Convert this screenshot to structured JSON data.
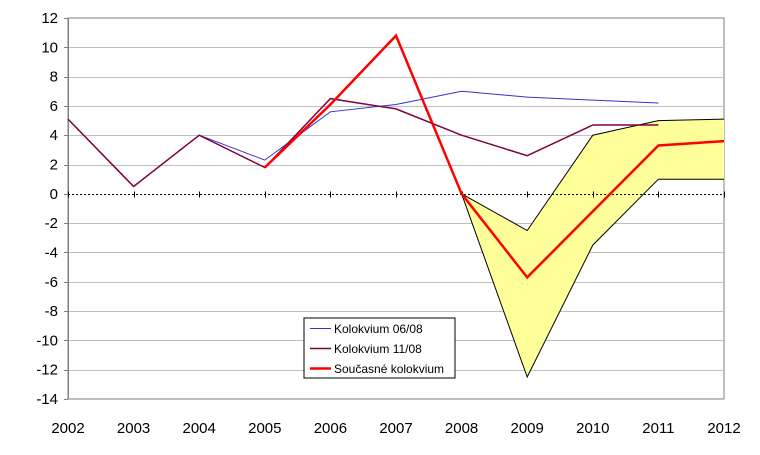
{
  "chart_data": {
    "type": "line",
    "x": [
      2002,
      2003,
      2004,
      2005,
      2006,
      2007,
      2008,
      2009,
      2010,
      2011,
      2012
    ],
    "x_tick_labels": [
      "2002",
      "2003",
      "2004",
      "2005",
      "2006",
      "2007",
      "2008",
      "2009",
      "2010",
      "2011",
      "2012"
    ],
    "ylim": [
      -14,
      12
    ],
    "y_ticks": [
      12,
      10,
      8,
      6,
      4,
      2,
      0,
      -2,
      -4,
      -6,
      -8,
      -10,
      -12,
      -14
    ],
    "y_tick_labels": [
      "12",
      "10",
      "8",
      "6",
      "4",
      "2",
      "0",
      "-2",
      "-4",
      "-6",
      "-8",
      "-10",
      "-12",
      "-14"
    ],
    "grid": "horizontal",
    "zero_line": "dotted",
    "legend_position": "lower-center",
    "series": [
      {
        "name": "Kolokvium 06/08",
        "color": "#3333cc",
        "values": [
          5.1,
          0.5,
          4.0,
          2.3,
          5.6,
          6.1,
          7.0,
          6.6,
          6.4,
          6.2,
          null
        ]
      },
      {
        "name": "Kolokvium 11/08",
        "color": "#800040",
        "values": [
          5.1,
          0.5,
          4.0,
          1.8,
          6.5,
          5.8,
          4.0,
          2.6,
          4.7,
          4.7,
          null
        ]
      },
      {
        "name": "Současné kolokvium",
        "color": "#ff0000",
        "values": [
          null,
          null,
          null,
          1.8,
          6.1,
          10.8,
          0.0,
          -5.7,
          -1.2,
          3.3,
          3.6
        ]
      }
    ],
    "band": {
      "color": "#ffff99",
      "x": [
        2008,
        2009,
        2010,
        2011,
        2012
      ],
      "upper": [
        0.0,
        -2.5,
        4.0,
        5.0,
        5.1
      ],
      "lower": [
        0.0,
        -12.5,
        -3.5,
        1.0,
        1.0
      ]
    }
  }
}
